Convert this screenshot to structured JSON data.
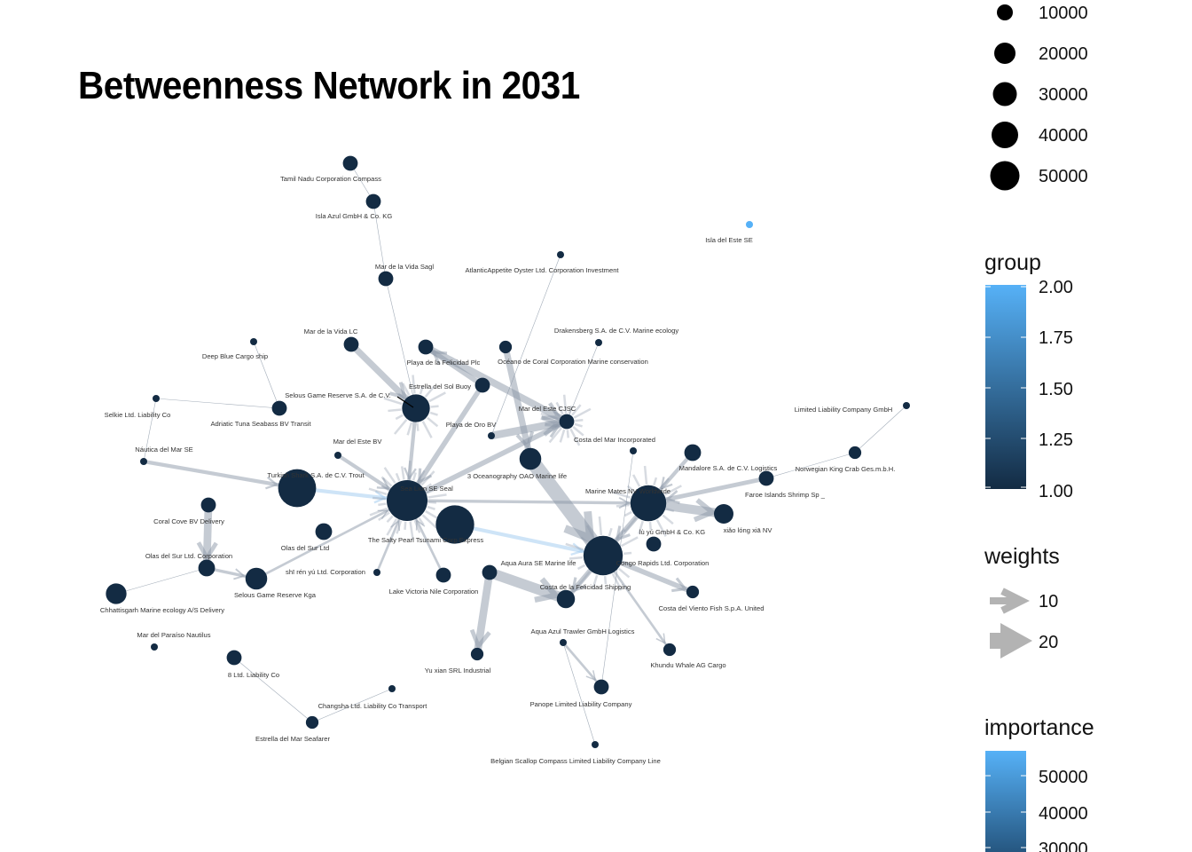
{
  "title": "Betweenness Network in 2031",
  "legend": {
    "size": {
      "items": [
        "10000",
        "20000",
        "30000",
        "40000",
        "50000"
      ],
      "values": [
        10000,
        20000,
        30000,
        40000,
        50000
      ]
    },
    "group": {
      "title": "group",
      "ticks": [
        "2.00",
        "1.75",
        "1.50",
        "1.25",
        "1.00"
      ],
      "range": [
        1,
        2
      ]
    },
    "weights": {
      "title": "weights",
      "items": [
        "10",
        "20"
      ]
    },
    "importance": {
      "title": "importance",
      "ticks": [
        "50000",
        "40000",
        "30000"
      ]
    }
  },
  "colors": {
    "low": "#132B43",
    "high": "#56B1F7",
    "edge": "#8c98a8"
  },
  "nodes": [
    {
      "id": "tamil",
      "label": "Tamil Nadu   Corporation Compass",
      "importance": 3000,
      "group": 1
    },
    {
      "id": "islaazul",
      "label": "Isla Azul GmbH & Co. KG",
      "importance": 3000,
      "group": 1
    },
    {
      "id": "isladeleste",
      "label": "Isla del Este SE",
      "importance": 1000,
      "group": 2
    },
    {
      "id": "vidasagl",
      "label": "Mar de la Vida Sagl",
      "importance": 3000,
      "group": 1
    },
    {
      "id": "atlantic",
      "label": "AtlanticAppetite Oyster  Ltd. Corporation Investment",
      "importance": 1000,
      "group": 1
    },
    {
      "id": "drakensberg",
      "label": "Drakensberg  S.A. de C.V. Marine ecology",
      "importance": 1000,
      "group": 1
    },
    {
      "id": "deepblue",
      "label": "Deep Blue Cargo ship",
      "importance": 1000,
      "group": 1
    },
    {
      "id": "vidalc",
      "label": "Mar de la Vida LC",
      "importance": 3000,
      "group": 1
    },
    {
      "id": "felicidadplc",
      "label": "Playa de la Felicidad Plc",
      "importance": 3000,
      "group": 1
    },
    {
      "id": "oceano",
      "label": "Océano de Coral Corporation Marine conservation",
      "importance": 2000,
      "group": 1
    },
    {
      "id": "estrella",
      "label": "Estrella del Sol Buoy",
      "importance": 3000,
      "group": 1
    },
    {
      "id": "selkie",
      "label": "Selkie Ltd. Liability Co",
      "importance": 1000,
      "group": 1
    },
    {
      "id": "selousSA",
      "label": "Selous Game Reserve  S.A. de C.V.",
      "importance": 15000,
      "group": 1
    },
    {
      "id": "adriatic",
      "label": "Adriatic Tuna Seabass BV Transit",
      "importance": 3000,
      "group": 1
    },
    {
      "id": "marestecjsc",
      "label": "Mar del Este CJSC",
      "importance": 3000,
      "group": 1
    },
    {
      "id": "costamar",
      "label": "Costa del Mar Incorporated",
      "importance": 1000,
      "group": 1
    },
    {
      "id": "playaoro",
      "label": "Playa de Oro BV",
      "importance": 1000,
      "group": 1
    },
    {
      "id": "limited",
      "label": "Limited Liability Company GmbH",
      "importance": 1000,
      "group": 1
    },
    {
      "id": "marestebv",
      "label": "Mar del Este BV",
      "importance": 1000,
      "group": 1
    },
    {
      "id": "nautica",
      "label": "Náutica del Mar SE",
      "importance": 1000,
      "group": 1
    },
    {
      "id": "norwegian",
      "label": "Norwegian King Crab Ges.m.b.H.",
      "importance": 2000,
      "group": 1
    },
    {
      "id": "mandalore",
      "label": "Mandalore S.A. de C.V. Logistics",
      "importance": 4000,
      "group": 1
    },
    {
      "id": "oceanography",
      "label": "3 Oceanography OAO Marine life",
      "importance": 8000,
      "group": 1
    },
    {
      "id": "faroe",
      "label": "Faroe Islands Shrimp Sp _",
      "importance": 3000,
      "group": 1
    },
    {
      "id": "turkish",
      "label": "Turkish Shark S.A. de C.V. Trout",
      "importance": 32000,
      "group": 1
    },
    {
      "id": "sealSE",
      "label": "Sea Lion SE Seal",
      "importance": 38000,
      "group": 1
    },
    {
      "id": "marinemates",
      "label": "Marine Mates NV Worldwide",
      "importance": 28000,
      "group": 1
    },
    {
      "id": "xiaolong",
      "label": "xiǎo lóng xiā NV",
      "importance": 6000,
      "group": 1
    },
    {
      "id": "coralcove",
      "label": "Coral Cove BV Delivery",
      "importance": 3000,
      "group": 1
    },
    {
      "id": "saltypearl",
      "label": "The Salty Pearl Tsunami Corp Express",
      "importance": 33000,
      "group": 1
    },
    {
      "id": "luyu",
      "label": "lù yú GmbH & Co. KG",
      "importance": 3000,
      "group": 1
    },
    {
      "id": "olasdelsur",
      "label": "Olas del Sur Ltd",
      "importance": 4000,
      "group": 1
    },
    {
      "id": "olasltd",
      "label": "Olas del Sur Ltd. Corporation",
      "importance": 4000,
      "group": 1
    },
    {
      "id": "shiren",
      "label": "shī rén yú Ltd. Corporation",
      "importance": 1000,
      "group": 1
    },
    {
      "id": "aquaaura",
      "label": "Aqua Aura SE Marine life",
      "importance": 3000,
      "group": 1
    },
    {
      "id": "congo",
      "label": "Congo Rapids   Ltd. Corporation",
      "importance": 35000,
      "group": 1
    },
    {
      "id": "lakevictoria",
      "label": "Lake Victoria Nile    Corporation",
      "importance": 3000,
      "group": 1
    },
    {
      "id": "costafelicidad",
      "label": "Costa de la Felicidad Shipping",
      "importance": 5000,
      "group": 1
    },
    {
      "id": "selouskga",
      "label": "Selous Game Reserve  Kga",
      "importance": 8000,
      "group": 1
    },
    {
      "id": "chhattisgarh",
      "label": "Chhattisgarh   Marine ecology A/S Delivery",
      "importance": 7000,
      "group": 1
    },
    {
      "id": "costaviento",
      "label": "Costa del Viento Fish  S.p.A. United",
      "importance": 2000,
      "group": 1
    },
    {
      "id": "aquaazul",
      "label": "Aqua Azul Trawler GmbH Logistics",
      "importance": 1000,
      "group": 1
    },
    {
      "id": "paraiso",
      "label": "Mar del Paraíso Nautilus",
      "importance": 1000,
      "group": 1
    },
    {
      "id": "yuxian",
      "label": "Yu xian  SRL Industrial",
      "importance": 2000,
      "group": 1
    },
    {
      "id": "khundu",
      "label": "Khundu Whale AG Cargo",
      "importance": 2000,
      "group": 1
    },
    {
      "id": "ltd8",
      "label": "8 Ltd. Liability Co",
      "importance": 3000,
      "group": 1
    },
    {
      "id": "changsha",
      "label": "Changsha Ltd. Liability Co Transport",
      "importance": 1000,
      "group": 1
    },
    {
      "id": "panope",
      "label": "Panope Limited Liability Company",
      "importance": 3000,
      "group": 1
    },
    {
      "id": "estrellamar",
      "label": "Estrella del Mar Seafarer",
      "importance": 2000,
      "group": 1
    },
    {
      "id": "belgian",
      "label": "Belgian Scallop Compass Limited Liability Company Line",
      "importance": 1000,
      "group": 1
    }
  ],
  "edges": [
    {
      "source": "tamil",
      "target": "islaazul",
      "weight": 1
    },
    {
      "source": "islaazul",
      "target": "vidasagl",
      "weight": 1
    },
    {
      "source": "vidasagl",
      "target": "selousSA",
      "weight": 1
    },
    {
      "source": "atlantic",
      "target": "playaoro",
      "weight": 1
    },
    {
      "source": "drakensberg",
      "target": "marestecjsc",
      "weight": 1
    },
    {
      "source": "deepblue",
      "target": "adriatic",
      "weight": 1
    },
    {
      "source": "vidalc",
      "target": "selousSA",
      "weight": 8
    },
    {
      "source": "felicidadplc",
      "target": "marestecjsc",
      "weight": 9
    },
    {
      "source": "oceano",
      "target": "oceanography",
      "weight": 8
    },
    {
      "source": "estrella",
      "target": "felicidadplc",
      "weight": 6
    },
    {
      "source": "estrella",
      "target": "sealSE",
      "weight": 6
    },
    {
      "source": "selkie",
      "target": "nautica",
      "weight": 1
    },
    {
      "source": "selkie",
      "target": "adriatic",
      "weight": 1
    },
    {
      "source": "selousSA",
      "target": "sealSE",
      "weight": 4
    },
    {
      "source": "playaoro",
      "target": "marestecjsc",
      "weight": 10
    },
    {
      "source": "sealSE",
      "target": "marestecjsc",
      "weight": 6
    },
    {
      "source": "oceanography",
      "target": "congo",
      "weight": 20
    },
    {
      "source": "turkish",
      "target": "sealSE",
      "weight": 4
    },
    {
      "source": "saltypearl",
      "target": "congo",
      "weight": 4
    },
    {
      "source": "sealSE",
      "target": "marinemates",
      "weight": 3
    },
    {
      "source": "marinemates",
      "target": "xiaolong",
      "weight": 12
    },
    {
      "source": "marinemates",
      "target": "congo",
      "weight": 6
    },
    {
      "source": "norwegian",
      "target": "limited",
      "weight": 1
    },
    {
      "source": "norwegian",
      "target": "faroe",
      "weight": 1
    },
    {
      "source": "faroe",
      "target": "marinemates",
      "weight": 5
    },
    {
      "source": "mandalore",
      "target": "marinemates",
      "weight": 4
    },
    {
      "source": "nautica",
      "target": "turkish",
      "weight": 4
    },
    {
      "source": "coralcove",
      "target": "olasltd",
      "weight": 10
    },
    {
      "source": "marestebv",
      "target": "sealSE",
      "weight": 4
    },
    {
      "source": "congo",
      "target": "costafelicidad",
      "weight": 6
    },
    {
      "source": "aquaaura",
      "target": "costafelicidad",
      "weight": 14
    },
    {
      "source": "aquaaura",
      "target": "yuxian",
      "weight": 10
    },
    {
      "source": "congo",
      "target": "costaviento",
      "weight": 6
    },
    {
      "source": "congo",
      "target": "khundu",
      "weight": 2
    },
    {
      "source": "aquaazul",
      "target": "panope",
      "weight": 2
    },
    {
      "source": "olasltd",
      "target": "selouskga",
      "weight": 3
    },
    {
      "source": "chhattisgarh",
      "target": "olasltd",
      "weight": 1
    },
    {
      "source": "selouskga",
      "target": "sealSE",
      "weight": 2
    },
    {
      "source": "changsha",
      "target": "estrellamar",
      "weight": 1
    },
    {
      "source": "ltd8",
      "target": "estrellamar",
      "weight": 1
    },
    {
      "source": "costamar",
      "target": "panope",
      "weight": 1
    },
    {
      "source": "belgian",
      "target": "aquaazul",
      "weight": 1
    },
    {
      "source": "shiren",
      "target": "sealSE",
      "weight": 2
    },
    {
      "source": "lakevictoria",
      "target": "sealSE",
      "weight": 2
    }
  ]
}
